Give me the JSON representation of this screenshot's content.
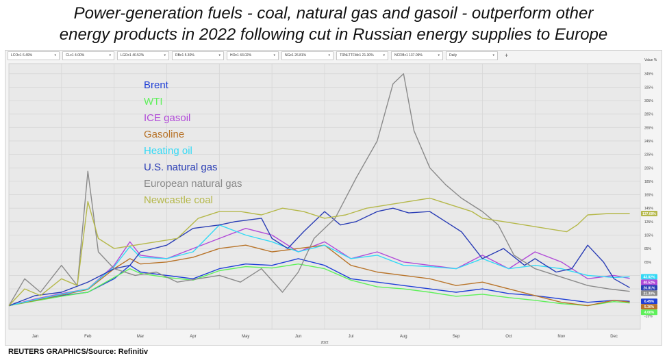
{
  "title_line1": "Power-generation fuels - coal, natural gas and gasoil - outperform other",
  "title_line2": "energy products in 2022 following cut in Russian energy supplies to Europe",
  "source": "REUTERS GRAPHICS/Source: Refinitiv",
  "toolbar": {
    "items": [
      "LCOc1 6.49%",
      "CLc1 4.00%",
      "LGOc1 40.52%",
      "RBc1 5.30%",
      "HOc1 43.02%",
      "NGc1 26.81%",
      "TRNLTTFMc1 21.30%",
      "NCFMc1 137.09%",
      "Daily"
    ],
    "plus": "+"
  },
  "chart_data": {
    "type": "line",
    "x_unit": "months of 2022 (0 = Jan 1, 12 = Dec 31)",
    "x_ticks": [
      "Jan",
      "Feb",
      "Mar",
      "Apr",
      "May",
      "Jun",
      "Jul",
      "Aug",
      "Sep",
      "Oct",
      "Nov",
      "Dec"
    ],
    "x_year_label": "2022",
    "y_axis_title": "Value %",
    "ylim": [
      -35,
      360
    ],
    "y_ticks": [
      -15,
      5,
      25,
      45,
      65,
      85,
      105,
      125,
      145,
      165,
      185,
      205,
      225,
      245,
      265,
      285,
      305,
      325,
      345
    ],
    "y_tick_labels": [
      "-15%",
      "5%",
      "25%",
      "45%",
      "65%",
      "85%",
      "105%",
      "125%",
      "145%",
      "165%",
      "185%",
      "205%",
      "225%",
      "245%",
      "265%",
      "285%",
      "305%",
      "325%",
      "345%"
    ],
    "grid": true,
    "legend_position": "top-left",
    "series": [
      {
        "name": "Brent",
        "color": "#1f3fd6",
        "end_label": "6.49%",
        "x": [
          0,
          0.5,
          1,
          1.5,
          2,
          2.3,
          2.5,
          3,
          3.5,
          4,
          4.5,
          5,
          5.5,
          6,
          6.5,
          7,
          7.5,
          8,
          8.5,
          9,
          9.5,
          10,
          10.5,
          11,
          11.5,
          11.8
        ],
        "y": [
          0,
          8,
          15,
          20,
          40,
          60,
          50,
          45,
          40,
          55,
          62,
          60,
          70,
          60,
          40,
          35,
          30,
          25,
          20,
          25,
          18,
          15,
          10,
          5,
          8,
          6.49
        ]
      },
      {
        "name": "WTI",
        "color": "#5ef05a",
        "end_label": "4.00%",
        "x": [
          0,
          0.5,
          1,
          1.5,
          2,
          2.3,
          2.5,
          3,
          3.5,
          4,
          4.5,
          5,
          5.5,
          6,
          6.5,
          7,
          7.5,
          8,
          8.5,
          9,
          9.5,
          10,
          10.5,
          11,
          11.5,
          11.8
        ],
        "y": [
          0,
          7,
          14,
          20,
          42,
          55,
          48,
          42,
          38,
          52,
          58,
          56,
          62,
          55,
          38,
          28,
          25,
          20,
          14,
          17,
          12,
          8,
          3,
          0,
          6,
          4
        ]
      },
      {
        "name": "ICE gasoil",
        "color": "#b14ad8",
        "end_label": "40.52%",
        "x": [
          0,
          0.5,
          1,
          1.5,
          2,
          2.3,
          2.5,
          3,
          3.5,
          4,
          4.5,
          5,
          5.5,
          6,
          6.5,
          7,
          7.5,
          8,
          8.5,
          9,
          9.5,
          10,
          10.5,
          11,
          11.5,
          11.8
        ],
        "y": [
          0,
          10,
          18,
          25,
          60,
          95,
          75,
          70,
          85,
          100,
          115,
          105,
          80,
          95,
          70,
          80,
          65,
          60,
          55,
          75,
          55,
          80,
          65,
          40,
          45,
          40.52
        ]
      },
      {
        "name": "Gasoline",
        "color": "#b8742a",
        "end_label": "5.30%",
        "x": [
          0,
          0.5,
          1,
          1.5,
          2,
          2.3,
          2.5,
          3,
          3.5,
          4,
          4.5,
          5,
          5.5,
          6,
          6.5,
          7,
          7.5,
          8,
          8.5,
          9,
          9.5,
          10,
          10.5,
          11,
          11.5,
          11.8
        ],
        "y": [
          0,
          8,
          16,
          24,
          55,
          70,
          62,
          65,
          72,
          85,
          90,
          80,
          85,
          90,
          60,
          50,
          45,
          40,
          30,
          35,
          25,
          15,
          5,
          0,
          8,
          5.3
        ]
      },
      {
        "name": "Heating oil",
        "color": "#33d9f5",
        "end_label": "43.02%",
        "x": [
          0,
          0.5,
          1,
          1.5,
          2,
          2.3,
          2.5,
          3,
          3.5,
          4,
          4.5,
          5,
          5.5,
          6,
          6.5,
          7,
          7.5,
          8,
          8.5,
          9,
          9.5,
          10,
          10.5,
          11,
          11.5,
          11.8
        ],
        "y": [
          0,
          9,
          17,
          25,
          58,
          88,
          72,
          70,
          80,
          120,
          105,
          95,
          80,
          90,
          70,
          75,
          60,
          58,
          55,
          70,
          55,
          60,
          55,
          45,
          42,
          43.02
        ]
      },
      {
        "name": "U.S. natural gas",
        "color": "#2a3db5",
        "end_label": "26.81%",
        "x": [
          0,
          0.5,
          1,
          1.5,
          2,
          2.3,
          2.5,
          3,
          3.5,
          4,
          4.3,
          4.8,
          5,
          5.3,
          5.6,
          6,
          6.3,
          6.6,
          7,
          7.3,
          7.6,
          8,
          8.3,
          8.6,
          9,
          9.4,
          9.8,
          10,
          10.4,
          10.7,
          11,
          11.3,
          11.5,
          11.8
        ],
        "y": [
          0,
          15,
          20,
          35,
          55,
          60,
          80,
          90,
          115,
          120,
          125,
          130,
          100,
          85,
          110,
          140,
          120,
          125,
          140,
          145,
          138,
          140,
          125,
          110,
          70,
          85,
          60,
          70,
          50,
          55,
          90,
          65,
          40,
          26.81
        ]
      },
      {
        "name": "European natural gas",
        "color": "#8a8a8a",
        "end_label": "21.30%",
        "x": [
          0,
          0.3,
          0.6,
          1,
          1.3,
          1.5,
          1.7,
          2,
          2.4,
          2.8,
          3.2,
          3.6,
          4,
          4.4,
          4.8,
          5.2,
          5.5,
          5.8,
          6.2,
          6.6,
          7,
          7.3,
          7.5,
          7.7,
          8,
          8.3,
          8.6,
          9,
          9.3,
          9.6,
          10,
          10.4,
          10.8,
          11,
          11.4,
          11.8
        ],
        "y": [
          0,
          40,
          20,
          60,
          30,
          200,
          80,
          55,
          45,
          50,
          35,
          40,
          45,
          35,
          55,
          20,
          50,
          100,
          130,
          190,
          245,
          330,
          345,
          260,
          205,
          180,
          160,
          140,
          120,
          75,
          55,
          45,
          35,
          30,
          25,
          21.3
        ]
      },
      {
        "name": "Newcastle coal",
        "color": "#b5b84a",
        "end_label": "137.09%",
        "x": [
          0,
          0.3,
          0.6,
          1,
          1.3,
          1.5,
          1.7,
          2,
          2.4,
          2.8,
          3.2,
          3.6,
          4,
          4.4,
          4.8,
          5.2,
          5.6,
          6,
          6.4,
          6.8,
          7.2,
          7.6,
          8,
          8.4,
          8.8,
          9,
          9.4,
          9.8,
          10.2,
          10.6,
          10.8,
          11,
          11.4,
          11.8
        ],
        "y": [
          0,
          25,
          15,
          40,
          30,
          155,
          100,
          85,
          90,
          95,
          100,
          130,
          140,
          140,
          135,
          145,
          140,
          130,
          135,
          145,
          150,
          155,
          160,
          150,
          140,
          130,
          125,
          120,
          115,
          110,
          120,
          135,
          137,
          137.09
        ]
      }
    ]
  }
}
